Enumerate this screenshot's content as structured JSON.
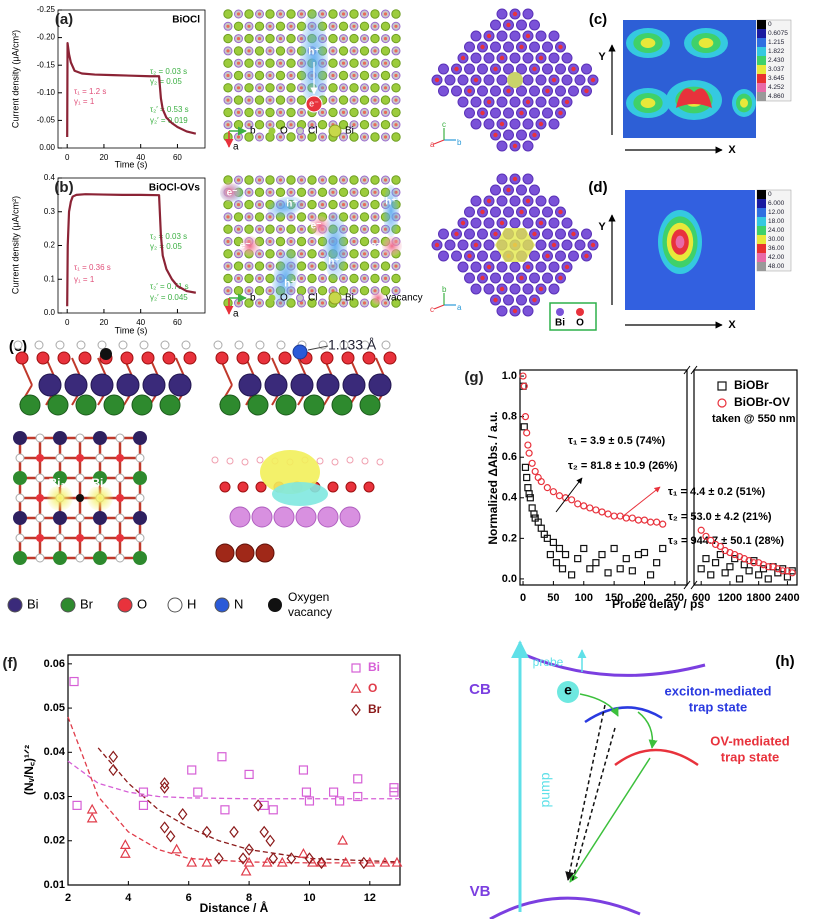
{
  "chart_data": [
    {
      "type": "line",
      "panel_label": "(a)",
      "title": "BiOCl",
      "xlabel": "Time (s)",
      "ylabel": "Current density (μA/cm²)",
      "xlim": [
        -5,
        75
      ],
      "xticks": [
        0,
        20,
        40,
        60
      ],
      "ylim": [
        0,
        -0.25
      ],
      "yticks": [
        -0.25,
        {
          "value": -0.2,
          "label": "-0.20"
        },
        -0.15,
        {
          "value": -0.1,
          "label": "-0.10"
        },
        -0.05,
        {
          "value": 0,
          "label": "0.00"
        }
      ],
      "x": [
        0,
        0.2,
        1,
        2,
        4,
        8,
        15,
        25,
        35,
        45,
        50,
        51,
        52,
        54,
        57,
        60,
        65,
        70
      ],
      "series": [
        {
          "color": "#8b2335",
          "values": [
            -0.02,
            -0.19,
            -0.17,
            -0.155,
            -0.14,
            -0.135,
            -0.133,
            -0.132,
            -0.131,
            -0.13,
            -0.13,
            -0.09,
            -0.07,
            -0.055,
            -0.045,
            -0.038,
            -0.03,
            -0.026
          ]
        }
      ],
      "annotations": [
        "τ₁ = 1.2 s",
        "γ₁ = 1",
        "τ₂ = 0.03 s",
        "γ₂ = 0.05",
        "τ₂′ = 0.53 s",
        "γ₂′ = 0.019"
      ]
    },
    {
      "type": "line",
      "panel_label": "(b)",
      "title": "BiOCl-OVs",
      "xlabel": "Time (s)",
      "ylabel": "Current density (μA/cm²)",
      "xlim": [
        -5,
        75
      ],
      "xticks": [
        0,
        20,
        40,
        60
      ],
      "ylim": [
        0,
        0.4
      ],
      "yticks": [
        {
          "value": 0,
          "label": "0.0"
        },
        0.1,
        0.2,
        0.3,
        0.4
      ],
      "x": [
        0,
        0.3,
        1,
        2,
        3,
        5,
        10,
        20,
        30,
        40,
        50,
        51,
        52,
        54,
        57,
        60,
        65,
        70
      ],
      "series": [
        {
          "color": "#8b2335",
          "values": [
            0.02,
            0.2,
            0.3,
            0.33,
            0.345,
            0.35,
            0.352,
            0.351,
            0.35,
            0.35,
            0.349,
            0.23,
            0.17,
            0.13,
            0.1,
            0.08,
            0.065,
            0.06
          ]
        }
      ],
      "annotations": [
        "τ₁ = 0.36 s",
        "γ₁ = 1",
        "τ₂ = 0.03 s",
        "γ₂ = 0.05",
        "τ₂′ = 0.71 s",
        "γ₂′ = 0.045"
      ]
    },
    {
      "type": "scatter",
      "panel_label": "(g)",
      "xlabel": "Probe delay / ps",
      "ylabel": "Normalized ΔAbs. / a.u.",
      "xlim": [
        -5,
        2600
      ],
      "xsegments": [
        [
          -5,
          270
        ],
        [
          450,
          2600
        ]
      ],
      "xticks": [
        0,
        50,
        100,
        150,
        200,
        250,
        600,
        1200,
        1800,
        2400
      ],
      "ylim": [
        -0.03,
        1.03
      ],
      "yticks": [
        {
          "value": 0,
          "label": "0.0"
        },
        0.2,
        0.4,
        0.6,
        0.8,
        {
          "value": 1,
          "label": "1.0"
        }
      ],
      "series": [
        {
          "name": "BiOBr",
          "color": "#111111",
          "marker": "square",
          "x": [
            0,
            2,
            4,
            6,
            8,
            10,
            12,
            15,
            18,
            20,
            25,
            30,
            35,
            40,
            45,
            50,
            55,
            60,
            65,
            70,
            80,
            90,
            100,
            110,
            120,
            130,
            140,
            150,
            160,
            170,
            180,
            190,
            200,
            210,
            220,
            230,
            600,
            700,
            800,
            900,
            1000,
            1100,
            1200,
            1300,
            1400,
            1500,
            1600,
            1700,
            1800,
            1900,
            2000,
            2100,
            2200,
            2300,
            2400,
            2500
          ],
          "values": [
            0.95,
            0.75,
            0.55,
            0.5,
            0.45,
            0.42,
            0.4,
            0.35,
            0.32,
            0.3,
            0.28,
            0.25,
            0.22,
            0.2,
            0.12,
            0.18,
            0.08,
            0.15,
            0.05,
            0.12,
            0.02,
            0.1,
            0.15,
            0.05,
            0.08,
            0.12,
            0.03,
            0.15,
            0.05,
            0.1,
            0.04,
            0.12,
            0.13,
            0.02,
            0.08,
            0.15,
            0.05,
            0.1,
            0.02,
            0.08,
            0.12,
            0.03,
            0.06,
            0.1,
            0,
            0.07,
            0.04,
            0.09,
            0.02,
            0.05,
            0,
            0.06,
            0.03,
            0.05,
            0.01,
            0.04
          ]
        },
        {
          "name": "BiOBr-OV",
          "color": "#e8323c",
          "marker": "circle",
          "x": [
            0,
            2,
            4,
            6,
            8,
            10,
            15,
            20,
            25,
            30,
            40,
            50,
            60,
            70,
            80,
            90,
            100,
            110,
            120,
            130,
            140,
            150,
            160,
            170,
            180,
            190,
            200,
            210,
            220,
            230,
            600,
            700,
            800,
            900,
            1000,
            1100,
            1200,
            1300,
            1400,
            1500,
            1600,
            1700,
            1800,
            1900,
            2000,
            2100,
            2200,
            2300,
            2400,
            2500
          ],
          "values": [
            1,
            0.95,
            0.8,
            0.72,
            0.66,
            0.62,
            0.57,
            0.53,
            0.5,
            0.48,
            0.45,
            0.43,
            0.41,
            0.4,
            0.39,
            0.37,
            0.36,
            0.35,
            0.34,
            0.33,
            0.32,
            0.31,
            0.31,
            0.3,
            0.3,
            0.29,
            0.29,
            0.28,
            0.28,
            0.27,
            0.24,
            0.21,
            0.19,
            0.17,
            0.16,
            0.14,
            0.13,
            0.12,
            0.11,
            0.1,
            0.09,
            0.08,
            0.08,
            0.07,
            0.06,
            0.06,
            0.05,
            0.04,
            0.04,
            0.03
          ]
        }
      ],
      "note": "taken @ 550 nm",
      "annotations": [
        "τ₁ = 3.9 ± 0.5 (74%)",
        "τ₂ = 81.8 ± 10.9 (26%)",
        "τ₁ = 4.4 ± 0.2 (51%)",
        "τ₂ = 53.0 ± 4.2 (21%)",
        "τ₃ = 944.7 ± 50.1 (28%)"
      ]
    },
    {
      "type": "scatter",
      "panel_label": "(f)",
      "xlabel": "Distance / Å",
      "ylabel": "(Nᵥ/N꜀)¹ᐟ²",
      "xlim": [
        2,
        13
      ],
      "xticks": [
        2,
        4,
        6,
        8,
        10,
        12
      ],
      "ylim": [
        0.01,
        0.062
      ],
      "yticks": [
        0.01,
        0.02,
        0.03,
        0.04,
        0.05,
        0.06
      ],
      "series": [
        {
          "name": "Bi",
          "color": "#d65fd6",
          "marker": "square",
          "x": [
            2.2,
            2.3,
            4.5,
            4.5,
            6.1,
            6.3,
            7.1,
            7.2,
            8.0,
            8.5,
            8.8,
            9.8,
            9.9,
            10.0,
            10.8,
            11.0,
            11.6,
            11.6,
            12.8,
            12.8
          ],
          "values": [
            0.056,
            0.028,
            0.031,
            0.028,
            0.036,
            0.031,
            0.039,
            0.027,
            0.035,
            0.028,
            0.027,
            0.036,
            0.031,
            0.029,
            0.031,
            0.029,
            0.034,
            0.03,
            0.032,
            0.031
          ]
        },
        {
          "name": "O",
          "color": "#e03c4a",
          "marker": "triangle",
          "x": [
            2.8,
            2.8,
            3.9,
            3.9,
            5.6,
            6.1,
            6.6,
            7.9,
            8.0,
            8.6,
            9.1,
            9.8,
            10.1,
            10.4,
            11.1,
            11.2,
            12.0,
            12.5,
            12.9
          ],
          "values": [
            0.027,
            0.025,
            0.019,
            0.017,
            0.018,
            0.015,
            0.015,
            0.013,
            0.015,
            0.015,
            0.015,
            0.017,
            0.015,
            0.015,
            0.02,
            0.015,
            0.015,
            0.015,
            0.015
          ]
        },
        {
          "name": "Br",
          "color": "#8b1a1a",
          "marker": "diamond",
          "x": [
            3.5,
            3.5,
            5.2,
            5.2,
            5.2,
            5.4,
            5.8,
            6.6,
            7.0,
            7.5,
            7.8,
            8.0,
            8.3,
            8.5,
            8.7,
            8.8,
            9.4,
            10.0,
            10.4,
            11.8
          ],
          "values": [
            0.039,
            0.036,
            0.033,
            0.032,
            0.023,
            0.021,
            0.026,
            0.022,
            0.016,
            0.022,
            0.016,
            0.018,
            0.028,
            0.022,
            0.02,
            0.016,
            0.016,
            0.016,
            0.015,
            0.015
          ]
        }
      ],
      "fits": [
        {
          "color": "#d65fd6",
          "x": [
            2,
            3,
            4,
            5,
            6,
            8,
            10,
            13
          ],
          "values": [
            0.038,
            0.033,
            0.031,
            0.03,
            0.0297,
            0.0295,
            0.0295,
            0.0295
          ]
        },
        {
          "color": "#e03c4a",
          "x": [
            2,
            3,
            4,
            5,
            6,
            8,
            10,
            13
          ],
          "values": [
            0.048,
            0.03,
            0.022,
            0.018,
            0.016,
            0.0152,
            0.015,
            0.015
          ]
        },
        {
          "color": "#8b1a1a",
          "x": [
            3,
            4,
            5,
            6,
            7,
            8,
            10,
            13
          ],
          "values": [
            0.041,
            0.033,
            0.027,
            0.023,
            0.02,
            0.018,
            0.016,
            0.0152
          ]
        }
      ]
    }
  ],
  "figures": {
    "a_structure": {
      "labels": [
        "h⁺",
        "e⁻"
      ],
      "axes": [
        "b",
        "a"
      ],
      "legend": [
        "O",
        "Cl",
        "Bi"
      ]
    },
    "b_structure": {
      "labels": [
        "e⁻",
        "h⁺",
        "h⁺",
        "e⁻",
        "e⁻",
        "e⁻",
        "h⁺",
        "h⁺"
      ],
      "axes": [
        "b",
        "a"
      ],
      "legend": [
        "O",
        "Cl",
        "Bi",
        "vacancy"
      ]
    },
    "c": {
      "label": "(c)",
      "axes": [
        "X",
        "Y"
      ],
      "crystal_axes": [
        "a",
        "c",
        "b"
      ],
      "colorbar": [
        "0",
        "0.6075",
        "1.215",
        "1.822",
        "2.430",
        "3.037",
        "3.645",
        "4.252",
        "4.860"
      ]
    },
    "d": {
      "label": "(d)",
      "axes": [
        "X",
        "Y"
      ],
      "crystal_axes": [
        "c",
        "b",
        "a"
      ],
      "legend": [
        "Bi",
        "O"
      ],
      "colorbar": [
        "0",
        "6.000",
        "12.00",
        "18.00",
        "24.00",
        "30.00",
        "36.00",
        "42.00",
        "48.00"
      ]
    },
    "e": {
      "label": "(e)",
      "bond_length": "1.133 Å",
      "sites": [
        "Bi₁",
        "Bi₂"
      ],
      "legend": [
        "Bi",
        "Br",
        "O",
        "H",
        "N"
      ],
      "vacancy": [
        "Oxygen",
        "vacancy"
      ]
    },
    "h": {
      "label": "(h)",
      "probe": "probe",
      "pump": "pump",
      "cb": "CB",
      "vb": "VB",
      "electron": "e",
      "exciton_trap": [
        "exciton-mediated",
        "trap state"
      ],
      "ov_trap": [
        "OV-mediated",
        "trap state"
      ]
    }
  }
}
